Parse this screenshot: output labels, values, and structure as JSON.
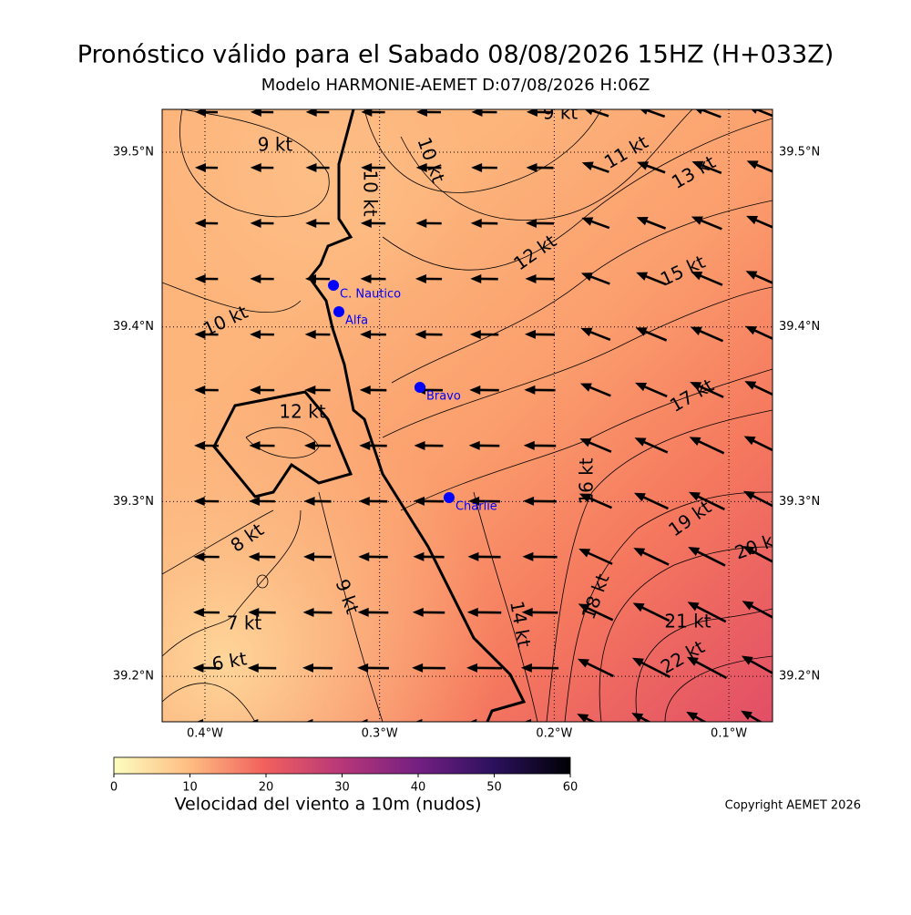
{
  "title": "Pronóstico válido para el Sabado 08/08/2026 15HZ (H+033Z)",
  "subtitle": "Modelo HARMONIE-AEMET D:07/08/2026 H:06Z",
  "map": {
    "xlim": [
      -0.4245,
      -0.075
    ],
    "ylim": [
      39.174,
      39.5245
    ],
    "xticks": [
      {
        "value": -0.4,
        "label": "0.4°W"
      },
      {
        "value": -0.3,
        "label": "0.3°W"
      },
      {
        "value": -0.2,
        "label": "0.2°W"
      },
      {
        "value": -0.1,
        "label": "0.1°W"
      }
    ],
    "yticks": [
      {
        "value": 39.5,
        "label": "39.5°N"
      },
      {
        "value": 39.4,
        "label": "39.4°N"
      },
      {
        "value": 39.3,
        "label": "39.3°N"
      },
      {
        "value": 39.2,
        "label": "39.2°N"
      }
    ],
    "grid": true,
    "contour_labels": [
      "9 kt",
      "10 kt",
      "10 kt",
      "11 kt",
      "13 kt",
      "12 kt",
      "15 kt",
      "10 kt",
      "12 kt",
      "17 kt",
      "16 kt",
      "19 kt",
      "20 kt",
      "8 kt",
      "9 kt",
      "18 kt",
      "14 kt",
      "7 kt",
      "21 kt",
      "22 kt",
      "6 kt",
      "9 kt"
    ],
    "stations": [
      {
        "name": "C. Nautico",
        "lon": -0.3264,
        "lat": 39.4238,
        "color": "#0000ff"
      },
      {
        "name": "Alfa",
        "lon": -0.3233,
        "lat": 39.4087,
        "color": "#0000ff"
      },
      {
        "name": "Bravo",
        "lon": -0.2769,
        "lat": 39.3654,
        "color": "#0000ff"
      },
      {
        "name": "Charlie",
        "lon": -0.2602,
        "lat": 39.3023,
        "color": "#0000ff"
      }
    ]
  },
  "colorbar": {
    "label": "Velocidad del viento a 10m (nudos)",
    "lim": [
      0,
      60
    ],
    "ticks": [
      0,
      10,
      20,
      30,
      40,
      50,
      60
    ]
  },
  "copyright": "Copyright AEMET 2026"
}
